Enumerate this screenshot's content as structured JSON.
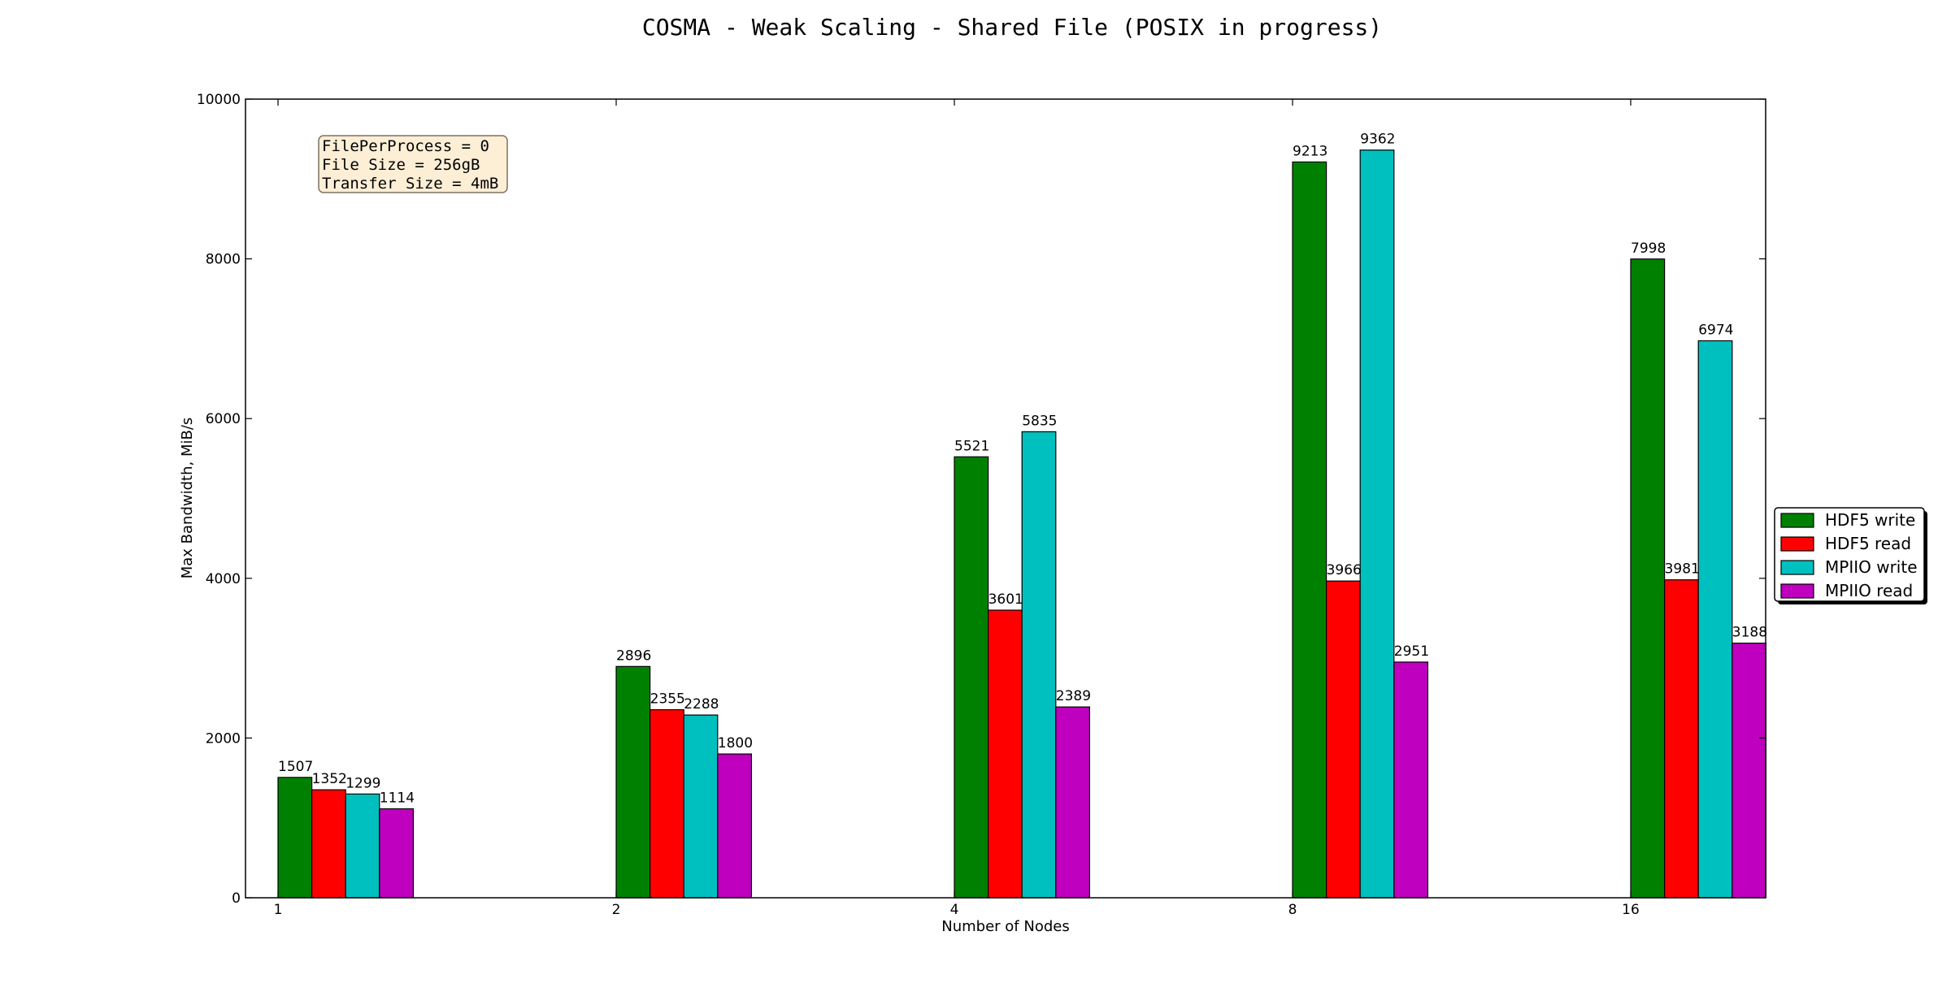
{
  "chart_data": {
    "type": "bar",
    "title": "COSMA - Weak Scaling - Shared File (POSIX in progress)",
    "xlabel": "Number of Nodes",
    "ylabel": "Max Bandwidth, MiB/s",
    "categories": [
      "1",
      "2",
      "4",
      "8",
      "16"
    ],
    "ylim": [
      0,
      10000
    ],
    "yticks": [
      0,
      2000,
      4000,
      6000,
      8000,
      10000
    ],
    "grid": false,
    "legend_position": "right",
    "series": [
      {
        "name": "HDF5 write",
        "color": "#008000",
        "values": [
          1507,
          2896,
          5521,
          9213,
          7998
        ]
      },
      {
        "name": "HDF5 read",
        "color": "#ff0000",
        "values": [
          1352,
          2355,
          3601,
          3966,
          3981
        ]
      },
      {
        "name": "MPIIO write",
        "color": "#00bfbf",
        "values": [
          1299,
          2288,
          5835,
          9362,
          6974
        ]
      },
      {
        "name": "MPIIO read",
        "color": "#bf00bf",
        "values": [
          1114,
          1800,
          2389,
          2951,
          3188
        ]
      }
    ],
    "annotation": [
      "FilePerProcess = 0",
      "File Size = 256gB",
      "Transfer Size = 4mB"
    ]
  }
}
